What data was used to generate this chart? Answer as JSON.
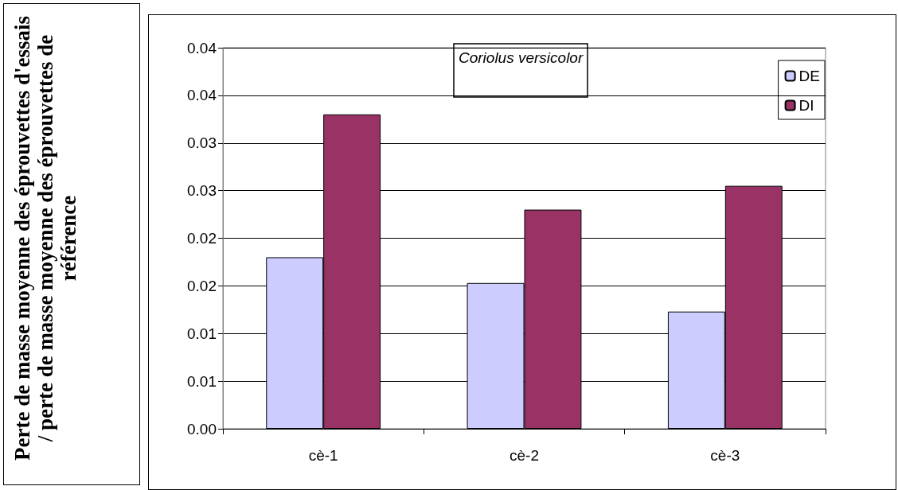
{
  "chart_data": {
    "type": "bar",
    "title": "Coriolus versicolor",
    "ylabel": "Perte de masse moyenne des éprouvettes d'essais / perte de masse moyenne des éprouvettes de référence",
    "categories": [
      "cè-1",
      "cè-2",
      "cè-3"
    ],
    "series": [
      {
        "name": "DE",
        "color": "#ccccff",
        "values": [
          0.018,
          0.0153,
          0.0123
        ]
      },
      {
        "name": "DI",
        "color": "#993366",
        "values": [
          0.033,
          0.023,
          0.0255
        ]
      }
    ],
    "ylim": [
      0,
      0.04
    ],
    "yticks": [
      {
        "value": 0,
        "label": "0.00"
      },
      {
        "value": 0.005,
        "label": "0.01"
      },
      {
        "value": 0.01,
        "label": "0.01"
      },
      {
        "value": 0.015,
        "label": "0.02"
      },
      {
        "value": 0.02,
        "label": "0.02"
      },
      {
        "value": 0.025,
        "label": "0.03"
      },
      {
        "value": 0.03,
        "label": "0.03"
      },
      {
        "value": 0.035,
        "label": "0.04"
      },
      {
        "value": 0.04,
        "label": "0.04"
      }
    ],
    "grid": "y",
    "legend": "top right"
  }
}
